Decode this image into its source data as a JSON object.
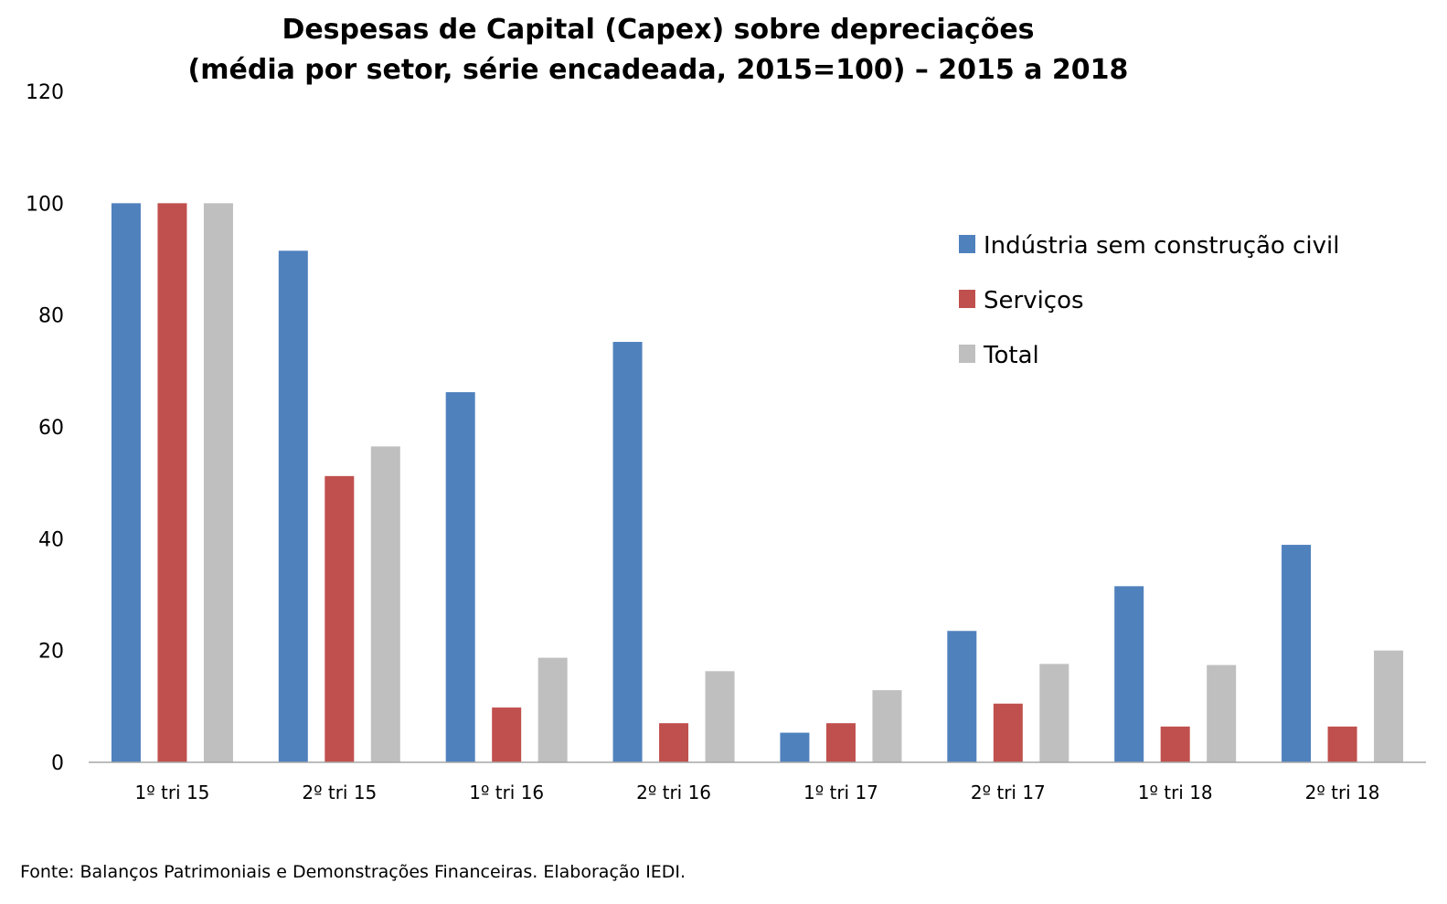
{
  "chart_data": {
    "type": "bar",
    "title": "Despesas de Capital (Capex) sobre depreciações",
    "subtitle": "(média por setor, série encadeada, 2015=100) – 2015 a 2018",
    "xlabel": "",
    "ylabel": "",
    "ylim": [
      0,
      120
    ],
    "yticks": [
      "0",
      "20",
      "40",
      "60",
      "80",
      "100",
      "120"
    ],
    "grid": false,
    "legend_position": "top-right",
    "categories": [
      "1º tri 15",
      "2º tri 15",
      "1º tri 16",
      "2º tri 16",
      "1º tri 17",
      "2º tri 17",
      "1º tri 18",
      "2º tri 18"
    ],
    "series": [
      {
        "name": "Indústria sem construção civil",
        "color": "#4f81bd",
        "values": [
          100,
          91.5,
          66.2,
          75.2,
          5.3,
          23.5,
          31.5,
          38.9
        ]
      },
      {
        "name": "Serviços",
        "color": "#c0504d",
        "values": [
          100,
          51.2,
          9.8,
          7.0,
          7.0,
          10.5,
          6.4,
          6.4
        ]
      },
      {
        "name": "Total",
        "color": "#bfbfbf",
        "values": [
          100,
          56.5,
          18.7,
          16.3,
          12.9,
          17.6,
          17.4,
          20.0
        ]
      }
    ],
    "source": "Fonte: Balanços Patrimoniais e Demonstrações Financeiras. Elaboração IEDI."
  }
}
